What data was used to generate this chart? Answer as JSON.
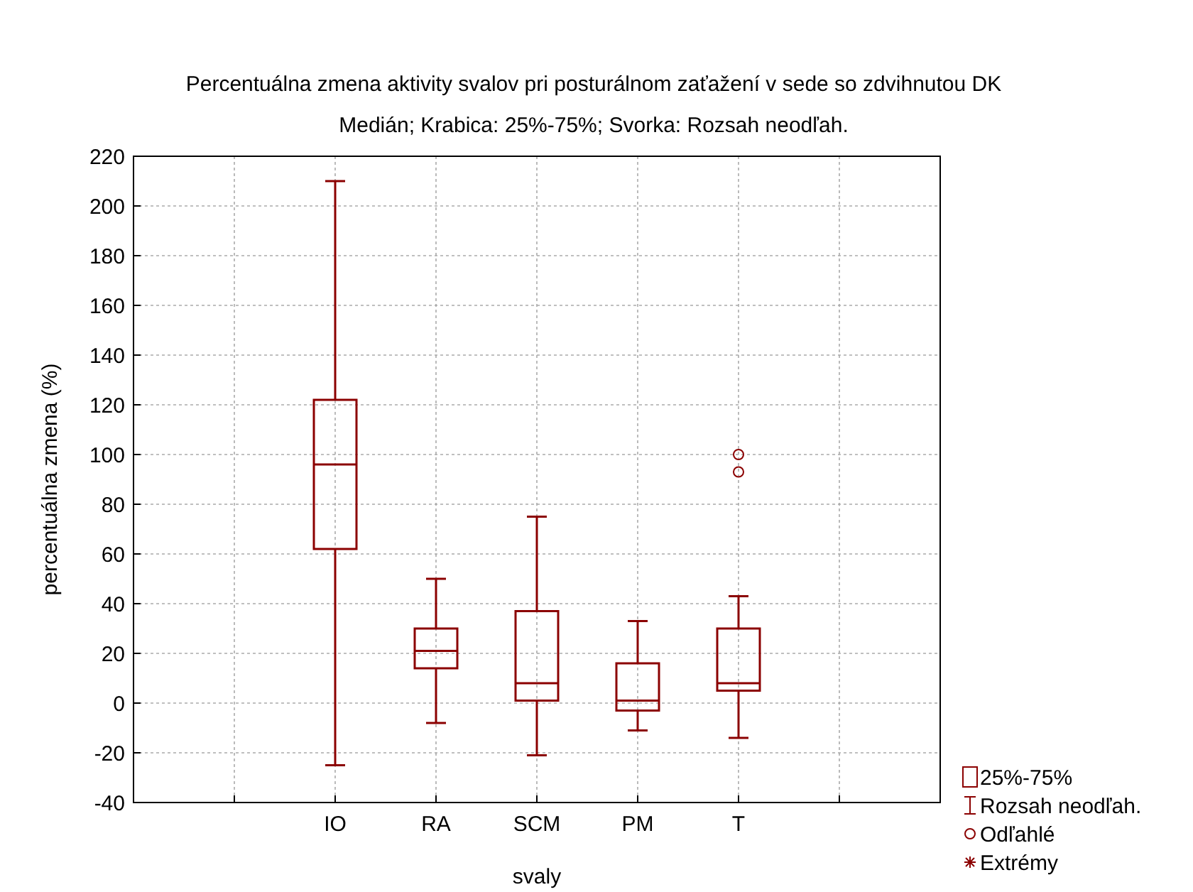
{
  "chart_data": {
    "type": "box",
    "title": "Percentuálna zmena aktivity svalov pri posturálnom zaťažení v sede so zdvihnutou DK",
    "subtitle": "Medián; Krabica: 25%-75%; Svorka: Rozsah neodľah.",
    "xlabel": "svaly",
    "ylabel": "percentuálna zmena (%)",
    "categories": [
      null,
      "IO",
      "RA",
      "SCM",
      "PM",
      "T",
      null
    ],
    "color": "#8b0000",
    "boxes": [
      null,
      {
        "low": -25,
        "q1": 62,
        "median": 96,
        "q3": 122,
        "high": 210
      },
      {
        "low": -8,
        "q1": 14,
        "median": 21,
        "q3": 30,
        "high": 50
      },
      {
        "low": -21,
        "q1": 1,
        "median": 8,
        "q3": 37,
        "high": 75
      },
      {
        "low": -11,
        "q1": -3,
        "median": 1,
        "q3": 16,
        "high": 33
      },
      {
        "low": -14,
        "q1": 5,
        "median": 8,
        "q3": 30,
        "high": 43,
        "outliers": [
          100,
          93
        ]
      },
      null
    ],
    "ylim": [
      -40,
      220
    ],
    "yticks": [
      -40,
      -20,
      0,
      20,
      40,
      60,
      80,
      100,
      120,
      140,
      160,
      180,
      200,
      220
    ],
    "grid": true,
    "annotations": [
      "25%-75%",
      "Rozsah neodľah.",
      "Odľahlé",
      "Extrémy"
    ]
  }
}
